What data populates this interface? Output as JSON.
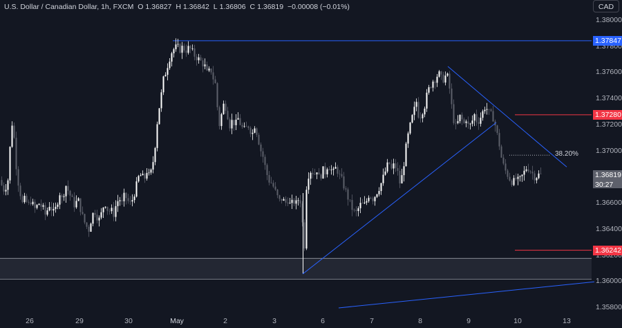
{
  "header": {
    "symbol": "U.S. Dollar / Canadian Dollar, 1h, FXCM",
    "o_label": "O",
    "o_value": "1.36827",
    "h_label": "H",
    "h_value": "1.36842",
    "l_label": "L",
    "l_value": "1.36806",
    "c_label": "C",
    "c_value": "1.36819",
    "change": "−0.00008 (−0.01%)"
  },
  "currency_button": "CAD",
  "colors": {
    "background": "#131722",
    "bull": "#ffffff",
    "bear": "#5d606b",
    "trendline": "#2962ff",
    "level_red": "#f23645",
    "price_tag": "#5d606b",
    "top_tag": "#2962ff"
  },
  "chart_data": {
    "type": "candlestick",
    "title": "U.S. Dollar / Canadian Dollar, 1h, FXCM",
    "y_axis": {
      "ticks": [
        "1.38000",
        "1.37800",
        "1.37600",
        "1.37400",
        "1.37200",
        "1.37000",
        "1.36800",
        "1.36600",
        "1.36400",
        "1.36200",
        "1.36000",
        "1.35800"
      ],
      "ylim": [
        1.3577,
        1.3813
      ]
    },
    "x_axis": {
      "ticks": [
        "26",
        "29",
        "30",
        "May",
        "2",
        "3",
        "6",
        "7",
        "8",
        "9",
        "10",
        "13"
      ]
    },
    "price_path": [
      [
        0,
        1.3678
      ],
      [
        4,
        1.367
      ],
      [
        8,
        1.3673
      ],
      [
        12,
        1.368
      ],
      [
        16,
        1.3725
      ],
      [
        20,
        1.371
      ],
      [
        24,
        1.3682
      ],
      [
        28,
        1.367
      ],
      [
        32,
        1.366
      ],
      [
        36,
        1.3664
      ],
      [
        40,
        1.3658
      ],
      [
        44,
        1.3662
      ],
      [
        50,
        1.3656
      ],
      [
        56,
        1.366
      ],
      [
        62,
        1.3656
      ],
      [
        66,
        1.365
      ],
      [
        70,
        1.366
      ],
      [
        74,
        1.3656
      ],
      [
        78,
        1.3652
      ],
      [
        82,
        1.366
      ],
      [
        86,
        1.3668
      ],
      [
        90,
        1.3662
      ],
      [
        94,
        1.3675
      ],
      [
        98,
        1.367
      ],
      [
        102,
        1.3665
      ],
      [
        108,
        1.3658
      ],
      [
        112,
        1.3664
      ],
      [
        116,
        1.3656
      ],
      [
        120,
        1.3648
      ],
      [
        124,
        1.3643
      ],
      [
        128,
        1.364
      ],
      [
        132,
        1.3649
      ],
      [
        136,
        1.3655
      ],
      [
        140,
        1.365
      ],
      [
        144,
        1.3647
      ],
      [
        148,
        1.3657
      ],
      [
        152,
        1.366
      ],
      [
        156,
        1.3654
      ],
      [
        160,
        1.3655
      ],
      [
        164,
        1.3652
      ],
      [
        168,
        1.366
      ],
      [
        172,
        1.3664
      ],
      [
        176,
        1.366
      ],
      [
        180,
        1.3667
      ],
      [
        184,
        1.3662
      ],
      [
        188,
        1.366
      ],
      [
        192,
        1.3664
      ],
      [
        196,
        1.3672
      ],
      [
        200,
        1.368
      ],
      [
        204,
        1.3682
      ],
      [
        208,
        1.3678
      ],
      [
        212,
        1.3685
      ],
      [
        216,
        1.368
      ],
      [
        220,
        1.3688
      ],
      [
        224,
        1.3705
      ],
      [
        228,
        1.3728
      ],
      [
        232,
        1.374
      ],
      [
        236,
        1.3755
      ],
      [
        240,
        1.3762
      ],
      [
        244,
        1.377
      ],
      [
        248,
        1.3776
      ],
      [
        252,
        1.3779
      ],
      [
        256,
        1.378
      ],
      [
        260,
        1.3778
      ],
      [
        264,
        1.378
      ],
      [
        268,
        1.3777
      ],
      [
        272,
        1.3779
      ],
      [
        276,
        1.3778
      ],
      [
        280,
        1.3774
      ],
      [
        284,
        1.3772
      ],
      [
        288,
        1.377
      ],
      [
        292,
        1.3768
      ],
      [
        296,
        1.3765
      ],
      [
        300,
        1.3758
      ],
      [
        304,
        1.3764
      ],
      [
        308,
        1.3756
      ],
      [
        312,
        1.375
      ],
      [
        316,
        1.3718
      ],
      [
        320,
        1.3728
      ],
      [
        324,
        1.3738
      ],
      [
        328,
        1.373
      ],
      [
        332,
        1.372
      ],
      [
        336,
        1.3724
      ],
      [
        340,
        1.372
      ],
      [
        344,
        1.3725
      ],
      [
        348,
        1.372
      ],
      [
        352,
        1.3716
      ],
      [
        356,
        1.3718
      ],
      [
        360,
        1.372
      ],
      [
        364,
        1.3712
      ],
      [
        368,
        1.372
      ],
      [
        372,
        1.3713
      ],
      [
        376,
        1.3702
      ],
      [
        380,
        1.3696
      ],
      [
        384,
        1.3686
      ],
      [
        388,
        1.3678
      ],
      [
        392,
        1.3676
      ],
      [
        396,
        1.3672
      ],
      [
        400,
        1.3666
      ],
      [
        404,
        1.3662
      ],
      [
        408,
        1.3664
      ],
      [
        412,
        1.366
      ],
      [
        416,
        1.3663
      ],
      [
        420,
        1.3658
      ],
      [
        424,
        1.3662
      ],
      [
        428,
        1.366
      ],
      [
        432,
        1.3664
      ],
      [
        436,
        1.366
      ],
      [
        438,
        1.363
      ],
      [
        440,
        1.3628
      ],
      [
        442,
        1.367
      ],
      [
        446,
        1.3682
      ],
      [
        450,
        1.3686
      ],
      [
        454,
        1.3682
      ],
      [
        458,
        1.3686
      ],
      [
        462,
        1.3678
      ],
      [
        466,
        1.3686
      ],
      [
        470,
        1.3684
      ],
      [
        474,
        1.369
      ],
      [
        478,
        1.3686
      ],
      [
        482,
        1.3684
      ],
      [
        486,
        1.3688
      ],
      [
        490,
        1.3682
      ],
      [
        494,
        1.3678
      ],
      [
        498,
        1.3672
      ],
      [
        502,
        1.3666
      ],
      [
        506,
        1.366
      ],
      [
        510,
        1.3655
      ],
      [
        514,
        1.3652
      ],
      [
        518,
        1.3656
      ],
      [
        522,
        1.366
      ],
      [
        526,
        1.3658
      ],
      [
        530,
        1.3662
      ],
      [
        534,
        1.3668
      ],
      [
        538,
        1.3663
      ],
      [
        542,
        1.3666
      ],
      [
        546,
        1.367
      ],
      [
        550,
        1.3674
      ],
      [
        554,
        1.368
      ],
      [
        558,
        1.3686
      ],
      [
        562,
        1.3692
      ],
      [
        566,
        1.3686
      ],
      [
        570,
        1.369
      ],
      [
        574,
        1.3686
      ],
      [
        578,
        1.3676
      ],
      [
        582,
        1.3682
      ],
      [
        586,
        1.37
      ],
      [
        590,
        1.3712
      ],
      [
        594,
        1.3722
      ],
      [
        598,
        1.373
      ],
      [
        602,
        1.3738
      ],
      [
        606,
        1.3725
      ],
      [
        610,
        1.373
      ],
      [
        614,
        1.3735
      ],
      [
        618,
        1.3745
      ],
      [
        622,
        1.375
      ],
      [
        626,
        1.3754
      ],
      [
        630,
        1.3756
      ],
      [
        634,
        1.376
      ],
      [
        638,
        1.3756
      ],
      [
        642,
        1.3755
      ],
      [
        646,
        1.376
      ],
      [
        650,
        1.3748
      ],
      [
        654,
        1.373
      ],
      [
        658,
        1.3718
      ],
      [
        662,
        1.3722
      ],
      [
        666,
        1.3728
      ],
      [
        670,
        1.372
      ],
      [
        674,
        1.3725
      ],
      [
        678,
        1.3718
      ],
      [
        682,
        1.3722
      ],
      [
        686,
        1.3728
      ],
      [
        690,
        1.3722
      ],
      [
        694,
        1.3725
      ],
      [
        698,
        1.373
      ],
      [
        702,
        1.3735
      ],
      [
        706,
        1.373
      ],
      [
        710,
        1.3728
      ],
      [
        714,
        1.3725
      ],
      [
        718,
        1.3715
      ],
      [
        722,
        1.3705
      ],
      [
        726,
        1.3692
      ],
      [
        730,
        1.3686
      ],
      [
        734,
        1.3682
      ],
      [
        738,
        1.3678
      ],
      [
        742,
        1.3676
      ],
      [
        746,
        1.3679
      ],
      [
        750,
        1.3677
      ],
      [
        754,
        1.368
      ],
      [
        758,
        1.3684
      ],
      [
        762,
        1.3688
      ],
      [
        766,
        1.3686
      ],
      [
        770,
        1.3683
      ],
      [
        774,
        1.368
      ],
      [
        778,
        1.3682
      ],
      [
        782,
        1.3682
      ]
    ],
    "horizontal_levels": [
      {
        "price": 1.37847,
        "label": "1.37847",
        "style": "blue"
      },
      {
        "price": 1.3728,
        "label": "1.37280",
        "style": "red"
      },
      {
        "price": 1.36242,
        "label": "1.36242",
        "style": "red"
      }
    ],
    "fib_level": {
      "price": 1.3697,
      "label": "38.20%"
    },
    "support_zone": {
      "top": 1.3618,
      "bottom": 1.3602
    },
    "trendlines": [
      {
        "from": [
          438,
          1.3606
        ],
        "to": [
          718,
          1.3722
        ]
      },
      {
        "from": [
          648,
          1.3765
        ],
        "to": [
          820,
          1.3688
        ]
      },
      {
        "from": [
          490,
          1.358
        ],
        "to": [
          860,
          1.36
        ]
      }
    ],
    "current_price": {
      "label": "1.36819",
      "countdown": "30:27",
      "price": 1.36819
    }
  }
}
